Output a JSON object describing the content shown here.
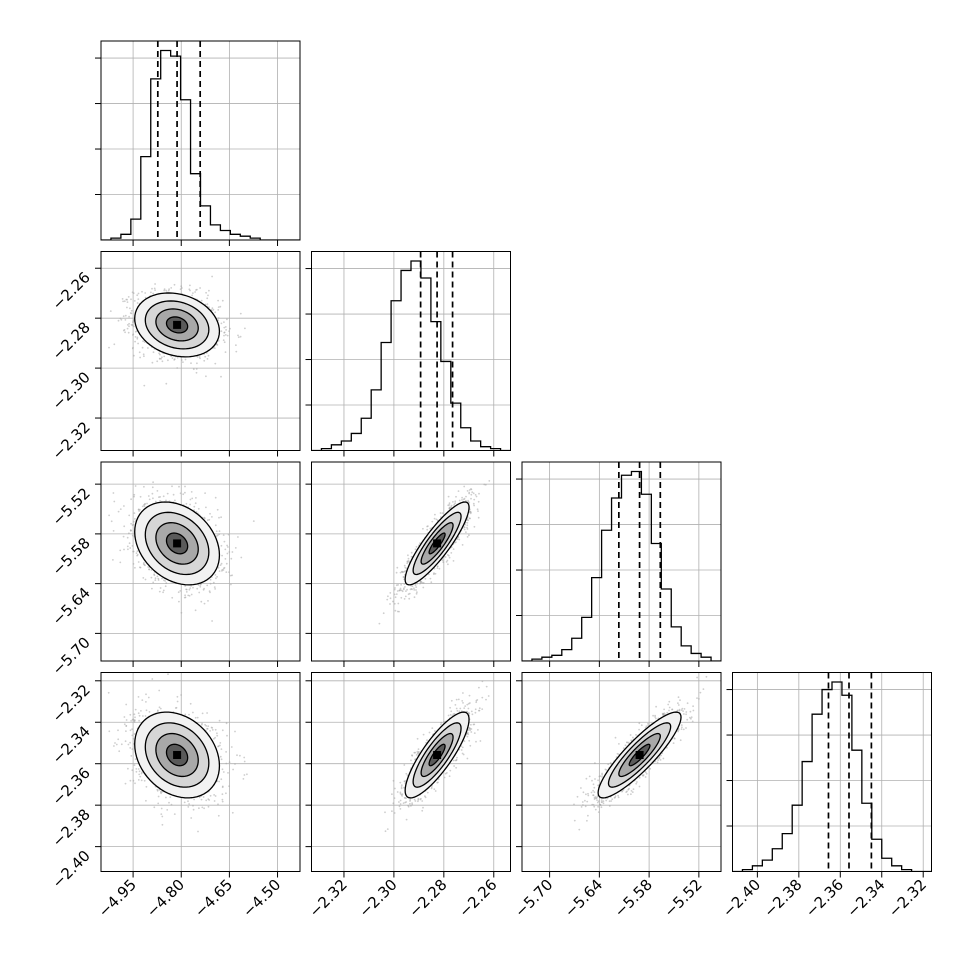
{
  "chart_data": {
    "type": "corner",
    "parameters": [
      {
        "range": [
          -5.05,
          -4.43
        ],
        "ticks": [
          "−4.95",
          "−4.80",
          "−4.65",
          "−4.50"
        ],
        "tick_values": [
          -4.95,
          -4.8,
          -4.65,
          -4.5
        ]
      },
      {
        "range": [
          -2.333,
          -2.2533
        ],
        "ticks": [
          "−2.32",
          "−2.30",
          "−2.28",
          "−2.26"
        ],
        "tick_values": [
          -2.32,
          -2.3,
          -2.28,
          -2.26
        ]
      },
      {
        "range": [
          -5.7333,
          -5.4933
        ],
        "ticks": [
          "−5.70",
          "−5.64",
          "−5.58",
          "−5.52"
        ],
        "tick_values": [
          -5.7,
          -5.64,
          -5.58,
          -5.52
        ]
      },
      {
        "range": [
          -2.412,
          -2.316
        ],
        "ticks": [
          "−2.40",
          "−2.38",
          "−2.36",
          "−2.34",
          "−2.32"
        ],
        "tick_values": [
          -2.4,
          -2.38,
          -2.36,
          -2.34,
          -2.32
        ]
      }
    ],
    "stats": [
      {
        "median": -4.813,
        "q16": -4.873,
        "q84": -4.741
      },
      {
        "median": -2.2827,
        "q16": -2.2893,
        "q84": -2.2765
      },
      {
        "median": -5.5915,
        "q16": -5.6165,
        "q84": -5.5665
      },
      {
        "median": -2.3558,
        "q16": -2.3657,
        "q84": -2.345
      }
    ],
    "histograms": [
      [
        0.0,
        0.01,
        0.03,
        0.11,
        0.44,
        0.85,
        1.0,
        0.97,
        0.74,
        0.35,
        0.18,
        0.08,
        0.05,
        0.03,
        0.02,
        0.01,
        0.0,
        0.0,
        0.0,
        0.0
      ],
      [
        0.0,
        0.01,
        0.03,
        0.05,
        0.09,
        0.17,
        0.32,
        0.57,
        0.79,
        0.95,
        1.0,
        0.91,
        0.68,
        0.47,
        0.25,
        0.12,
        0.05,
        0.02,
        0.01,
        0.0
      ],
      [
        0.0,
        0.01,
        0.02,
        0.03,
        0.06,
        0.12,
        0.23,
        0.44,
        0.69,
        0.86,
        0.98,
        1.0,
        0.88,
        0.62,
        0.38,
        0.18,
        0.08,
        0.04,
        0.02,
        0.0
      ],
      [
        0.0,
        0.01,
        0.03,
        0.06,
        0.12,
        0.2,
        0.35,
        0.58,
        0.83,
        0.96,
        1.0,
        0.93,
        0.64,
        0.36,
        0.17,
        0.07,
        0.03,
        0.01,
        0.0,
        0.0
      ]
    ],
    "correlations": [
      [
        1.0,
        0.0,
        0.0,
        0.0
      ],
      [
        -0.2,
        1.0,
        0.0,
        0.0
      ],
      [
        -0.28,
        0.87,
        1.0,
        0.0
      ],
      [
        -0.25,
        0.83,
        0.88,
        1.0
      ]
    ],
    "contour_levels_sigma": [
      0.5,
      1.0,
      1.5,
      2.0
    ],
    "grid": true,
    "colors": {
      "line": "#000000",
      "grid": "#b0b0b0",
      "points": "#a6a6a6",
      "background": "#ffffff"
    }
  }
}
